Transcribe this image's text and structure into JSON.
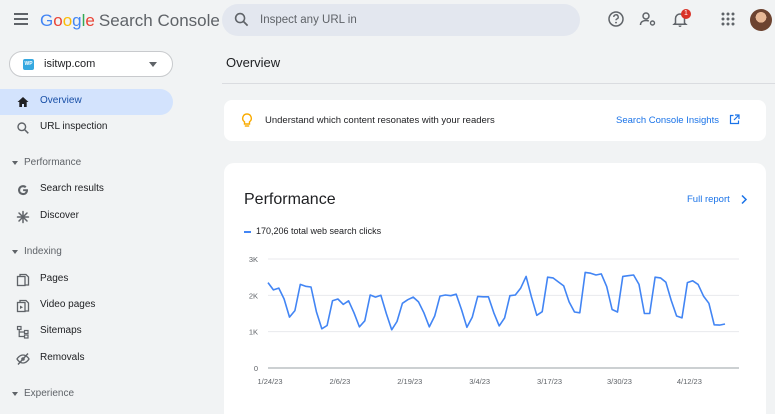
{
  "header": {
    "logo_letters": [
      "G",
      "o",
      "o",
      "g",
      "l",
      "e"
    ],
    "product_name": "Search Console",
    "search_placeholder": "Inspect any URL in",
    "notification_count": "1",
    "icons": [
      "menu-icon",
      "search-icon",
      "help-icon",
      "manage-users-icon",
      "notifications-icon",
      "apps-icon",
      "avatar"
    ]
  },
  "sidebar": {
    "property": "isitwp.com",
    "property_favicon": "WP",
    "items": [
      {
        "label": "Overview",
        "icon": "home-icon"
      },
      {
        "label": "URL inspection",
        "icon": "search-icon"
      }
    ],
    "sections": [
      {
        "label": "Performance",
        "items": [
          {
            "label": "Search results",
            "icon": "google-g-icon"
          },
          {
            "label": "Discover",
            "icon": "asterisk-icon"
          }
        ]
      },
      {
        "label": "Indexing",
        "items": [
          {
            "label": "Pages",
            "icon": "pages-icon"
          },
          {
            "label": "Video pages",
            "icon": "video-pages-icon"
          },
          {
            "label": "Sitemaps",
            "icon": "sitemap-icon"
          },
          {
            "label": "Removals",
            "icon": "removals-icon"
          }
        ]
      },
      {
        "label": "Experience",
        "items": []
      }
    ]
  },
  "main": {
    "title": "Overview",
    "insight": {
      "text": "Understand which content resonates with your readers",
      "link": "Search Console Insights"
    },
    "performance": {
      "title": "Performance",
      "full_report": "Full report",
      "legend": "170,206 total web search clicks"
    }
  },
  "colors": {
    "accent": "#1a73e8",
    "series": "#4285f4",
    "active_nav": "#d3e3fd",
    "background": "#f1f3f4"
  },
  "chart_data": {
    "type": "line",
    "title": "",
    "xlabel": "",
    "ylabel": "",
    "x_start": "1/24/23",
    "x_end": "4/22/23",
    "x_tick_labels": [
      "1/24/23",
      "2/6/23",
      "2/19/23",
      "3/4/23",
      "3/17/23",
      "3/30/23",
      "4/12/23"
    ],
    "y_tick_labels": [
      "0",
      "1K",
      "2K",
      "3K"
    ],
    "ylim": [
      0,
      3000
    ],
    "grid": true,
    "series": [
      {
        "name": "Clicks",
        "values": [
          2350,
          2150,
          2200,
          1900,
          1400,
          1580,
          2300,
          2250,
          2230,
          1550,
          1080,
          1170,
          1850,
          1900,
          1750,
          1850,
          1520,
          1130,
          1300,
          2010,
          1950,
          2000,
          1500,
          1050,
          1280,
          1780,
          1880,
          1950,
          1820,
          1520,
          1130,
          1430,
          1980,
          2010,
          1990,
          2030,
          1600,
          1120,
          1400,
          1970,
          1960,
          1960,
          1520,
          1160,
          1380,
          1990,
          2010,
          2200,
          2520,
          1960,
          1450,
          1550,
          2500,
          2480,
          2370,
          2260,
          1820,
          1540,
          1520,
          2630,
          2610,
          2560,
          2590,
          2240,
          1610,
          1540,
          2520,
          2540,
          2560,
          2300,
          1500,
          1500,
          2500,
          2480,
          2360,
          1860,
          1430,
          1380,
          2350,
          2400,
          2300,
          1980,
          1780,
          1190,
          1180,
          1210
        ]
      }
    ]
  }
}
